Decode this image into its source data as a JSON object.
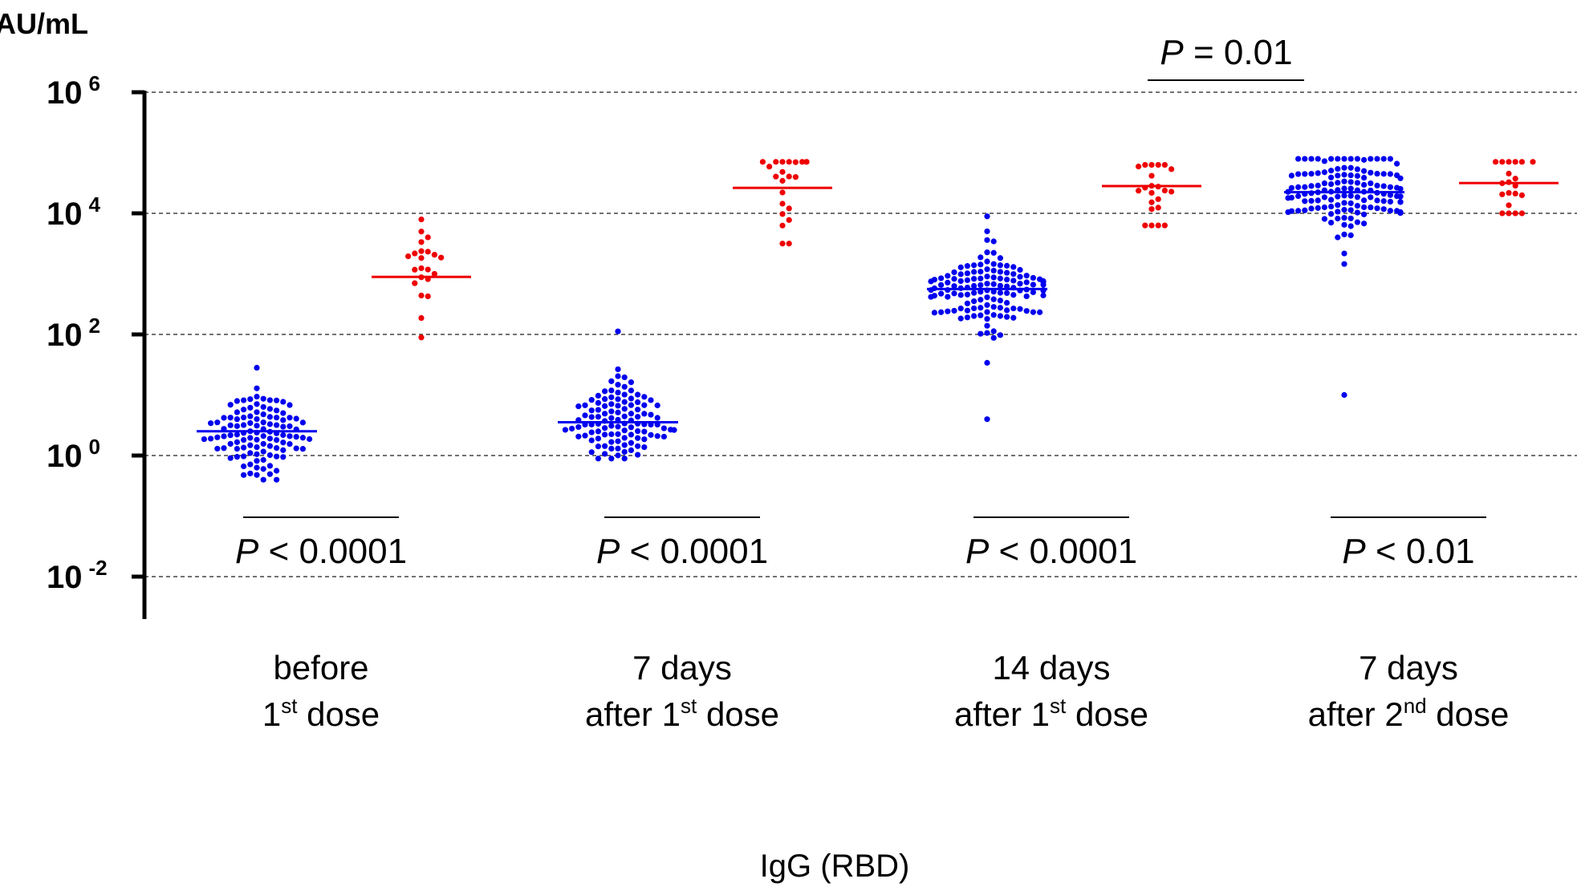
{
  "chart_data": {
    "type": "scatter",
    "ylabel": "AU/mL",
    "yscale": "log10",
    "ylim_exp": [
      -2.7,
      6
    ],
    "yticks": [
      {
        "exp": 6,
        "base": "10",
        "sup": "6"
      },
      {
        "exp": 4,
        "base": "10",
        "sup": "4"
      },
      {
        "exp": 2,
        "base": "10",
        "sup": "2"
      },
      {
        "exp": 0,
        "base": "10",
        "sup": "0"
      },
      {
        "exp": -2,
        "base": "10",
        "sup": "-2"
      }
    ],
    "grid": "horizontal-dashed",
    "xlabel": "IgG (RBD)",
    "colors": {
      "blue": "#0000ee",
      "red": "#ee0000"
    },
    "groups": [
      {
        "line1": "before",
        "line2_pre": "1",
        "line2_sup": "st",
        "line2_post": " dose",
        "pvalue": {
          "p": "P",
          "rest": " < 0.0001"
        },
        "blue": {
          "n": 110,
          "median_exp": 0.4,
          "min_exp": -0.4,
          "max_exp": 1.45
        },
        "red": {
          "n": 22,
          "median_exp": 2.95,
          "min_exp": 1.95,
          "max_exp": 3.9
        }
      },
      {
        "line1": "7 days",
        "line2_pre": "after 1",
        "line2_sup": "st",
        "line2_post": " dose",
        "pvalue": {
          "p": "P",
          "rest": " < 0.0001"
        },
        "blue": {
          "n": 110,
          "median_exp": 0.55,
          "min_exp": -0.05,
          "max_exp": 2.05
        },
        "red": {
          "n": 22,
          "median_exp": 4.42,
          "min_exp": 3.5,
          "max_exp": 4.85
        }
      },
      {
        "line1": "14 days",
        "line2_pre": "after 1",
        "line2_sup": "st",
        "line2_post": " dose",
        "pvalue": {
          "p": "P",
          "rest": " < 0.0001"
        },
        "blue": {
          "n": 130,
          "median_exp": 2.75,
          "min_exp": 0.6,
          "max_exp": 3.95
        },
        "red": {
          "n": 22,
          "median_exp": 4.45,
          "min_exp": 3.8,
          "max_exp": 4.8
        }
      },
      {
        "line1": "7 days",
        "line2_pre": "after 2",
        "line2_sup": "nd",
        "line2_post": " dose",
        "pvalue": {
          "p": "P",
          "rest": " < 0.01"
        },
        "blue": {
          "n": 140,
          "median_exp": 4.35,
          "min_exp": 1.0,
          "max_exp": 4.9
        },
        "red": {
          "n": 20,
          "median_exp": 4.5,
          "min_exp": 4.0,
          "max_exp": 4.85
        }
      }
    ],
    "top_comparison": {
      "p": "P",
      "rest": " = 0.01"
    }
  }
}
